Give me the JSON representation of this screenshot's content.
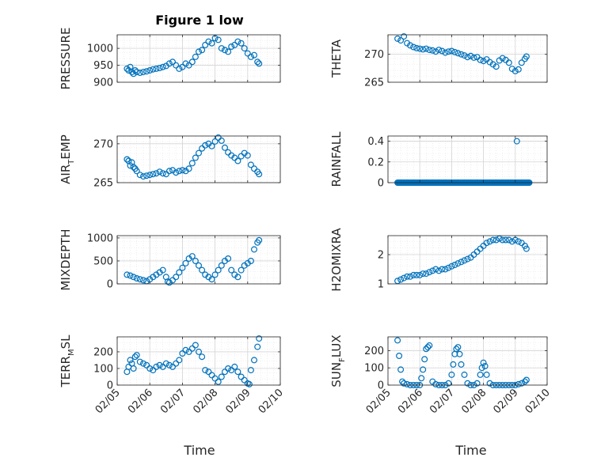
{
  "figure_title": "Figure 1 low",
  "xlabel": "Time",
  "x_ticks": [
    "02/05",
    "02/06",
    "02/07",
    "02/08",
    "02/09",
    "02/10"
  ],
  "marker_color": "#0072BD",
  "chart_data": [
    {
      "type": "scatter",
      "ylabel": "PRESSURE",
      "grid": true,
      "x": [
        5.3,
        5.35,
        5.4,
        5.45,
        5.5,
        5.55,
        5.6,
        5.7,
        5.8,
        5.9,
        6.0,
        6.1,
        6.2,
        6.3,
        6.4,
        6.5,
        6.6,
        6.7,
        6.8,
        6.9,
        7.0,
        7.1,
        7.2,
        7.3,
        7.4,
        7.5,
        7.6,
        7.7,
        7.8,
        7.9,
        8.0,
        8.1,
        8.2,
        8.3,
        8.4,
        8.5,
        8.6,
        8.7,
        8.8,
        8.9,
        9.0,
        9.1,
        9.2,
        9.3,
        9.35
      ],
      "y": [
        940,
        935,
        945,
        930,
        925,
        935,
        930,
        928,
        930,
        932,
        935,
        938,
        940,
        942,
        945,
        948,
        955,
        960,
        950,
        940,
        945,
        955,
        950,
        960,
        975,
        990,
        995,
        1010,
        1020,
        1015,
        1030,
        1025,
        1000,
        995,
        990,
        1005,
        1010,
        1020,
        1015,
        1000,
        985,
        975,
        980,
        960,
        955
      ],
      "ylim": [
        900,
        1040
      ],
      "yticks": [
        "900",
        "950",
        "1000"
      ],
      "ytick_values": [
        900,
        950,
        1000
      ]
    },
    {
      "type": "scatter",
      "ylabel": "THETA",
      "grid": true,
      "x": [
        5.3,
        5.4,
        5.5,
        5.6,
        5.7,
        5.8,
        5.9,
        6.0,
        6.1,
        6.2,
        6.3,
        6.4,
        6.5,
        6.6,
        6.7,
        6.8,
        6.9,
        7.0,
        7.1,
        7.2,
        7.3,
        7.4,
        7.5,
        7.6,
        7.7,
        7.8,
        7.9,
        8.0,
        8.1,
        8.2,
        8.3,
        8.4,
        8.5,
        8.6,
        8.7,
        8.8,
        8.9,
        9.0,
        9.1,
        9.2,
        9.3,
        9.35
      ],
      "y": [
        272.8,
        272.5,
        273.2,
        272.0,
        271.6,
        271.3,
        271.1,
        271.0,
        270.9,
        271.0,
        270.8,
        270.7,
        270.5,
        270.8,
        270.6,
        270.3,
        270.5,
        270.6,
        270.4,
        270.2,
        270.0,
        269.8,
        269.5,
        269.7,
        269.4,
        269.5,
        269.0,
        268.8,
        269.1,
        268.6,
        268.2,
        267.8,
        268.9,
        269.3,
        269.0,
        268.5,
        267.4,
        267.0,
        267.3,
        268.5,
        269.2,
        269.6
      ],
      "ylim": [
        265,
        273.5
      ],
      "yticks": [
        "265",
        "270"
      ],
      "ytick_values": [
        265,
        270
      ]
    },
    {
      "type": "scatter",
      "ylabel": "AIR_TEMP",
      "grid": true,
      "x": [
        5.3,
        5.35,
        5.4,
        5.45,
        5.5,
        5.55,
        5.6,
        5.7,
        5.8,
        5.9,
        6.0,
        6.1,
        6.2,
        6.3,
        6.4,
        6.5,
        6.6,
        6.7,
        6.8,
        6.9,
        7.0,
        7.1,
        7.2,
        7.3,
        7.4,
        7.5,
        7.6,
        7.7,
        7.8,
        7.9,
        8.0,
        8.1,
        8.2,
        8.3,
        8.4,
        8.5,
        8.6,
        8.7,
        8.8,
        8.9,
        9.0,
        9.1,
        9.2,
        9.3,
        9.35
      ],
      "y": [
        268.0,
        267.8,
        267.2,
        267.6,
        267.0,
        266.8,
        266.5,
        266.0,
        265.8,
        265.9,
        266.0,
        266.1,
        266.2,
        266.4,
        266.2,
        266.1,
        266.5,
        266.6,
        266.3,
        266.5,
        266.6,
        266.5,
        266.8,
        267.5,
        268.2,
        268.8,
        269.4,
        269.8,
        270.0,
        269.7,
        270.3,
        270.8,
        270.4,
        269.5,
        268.9,
        268.5,
        268.2,
        267.8,
        268.4,
        268.8,
        268.5,
        267.3,
        266.8,
        266.4,
        266.1
      ],
      "ylim": [
        265,
        271
      ],
      "yticks": [
        "265",
        "270"
      ],
      "ytick_values": [
        265,
        270
      ]
    },
    {
      "type": "scatter",
      "ylabel": "RAINFALL",
      "grid": true,
      "x_range": [
        5.3,
        9.45
      ],
      "constant": 0,
      "outlier": {
        "x": 9.05,
        "y": 0.4
      },
      "ylim": [
        0,
        0.45
      ],
      "yticks": [
        "0",
        "0.2",
        "0.4"
      ],
      "ytick_values": [
        0,
        0.2,
        0.4
      ]
    },
    {
      "type": "scatter",
      "ylabel": "MIXDEPTH",
      "grid": true,
      "x": [
        5.3,
        5.4,
        5.5,
        5.6,
        5.7,
        5.8,
        5.9,
        6.0,
        6.1,
        6.2,
        6.3,
        6.4,
        6.5,
        6.55,
        6.6,
        6.7,
        6.8,
        6.9,
        7.0,
        7.1,
        7.2,
        7.3,
        7.4,
        7.5,
        7.6,
        7.7,
        7.8,
        7.9,
        8.0,
        8.1,
        8.2,
        8.3,
        8.4,
        8.5,
        8.6,
        8.7,
        8.8,
        8.9,
        9.0,
        9.1,
        9.2,
        9.3,
        9.35
      ],
      "y": [
        200,
        180,
        150,
        120,
        100,
        80,
        60,
        100,
        150,
        200,
        250,
        300,
        150,
        50,
        30,
        80,
        150,
        250,
        350,
        450,
        550,
        600,
        500,
        400,
        300,
        200,
        150,
        100,
        200,
        300,
        400,
        500,
        550,
        300,
        200,
        150,
        300,
        400,
        450,
        500,
        750,
        900,
        950
      ],
      "ylim": [
        0,
        1050
      ],
      "yticks": [
        "0",
        "500",
        "1000"
      ],
      "ytick_values": [
        0,
        500,
        1000
      ]
    },
    {
      "type": "scatter",
      "ylabel": "H2OMIXRA",
      "grid": true,
      "x": [
        5.3,
        5.4,
        5.5,
        5.6,
        5.7,
        5.8,
        5.9,
        6.0,
        6.1,
        6.2,
        6.3,
        6.4,
        6.5,
        6.6,
        6.7,
        6.8,
        6.9,
        7.0,
        7.1,
        7.2,
        7.3,
        7.4,
        7.5,
        7.6,
        7.7,
        7.8,
        7.9,
        8.0,
        8.1,
        8.2,
        8.3,
        8.4,
        8.5,
        8.6,
        8.7,
        8.8,
        8.9,
        9.0,
        9.1,
        9.2,
        9.3,
        9.35
      ],
      "y": [
        1.1,
        1.15,
        1.2,
        1.25,
        1.25,
        1.3,
        1.3,
        1.3,
        1.35,
        1.35,
        1.4,
        1.45,
        1.5,
        1.45,
        1.5,
        1.5,
        1.55,
        1.6,
        1.65,
        1.7,
        1.75,
        1.8,
        1.85,
        1.9,
        2.0,
        2.1,
        2.2,
        2.3,
        2.4,
        2.45,
        2.5,
        2.5,
        2.55,
        2.5,
        2.5,
        2.5,
        2.45,
        2.5,
        2.45,
        2.4,
        2.3,
        2.2
      ],
      "ylim": [
        1,
        2.65
      ],
      "yticks": [
        "1",
        "2"
      ],
      "ytick_values": [
        1,
        2
      ]
    },
    {
      "type": "scatter",
      "ylabel": "TERR_MSL",
      "grid": true,
      "x": [
        5.3,
        5.35,
        5.4,
        5.45,
        5.5,
        5.55,
        5.6,
        5.7,
        5.8,
        5.9,
        6.0,
        6.1,
        6.2,
        6.3,
        6.4,
        6.5,
        6.6,
        6.7,
        6.8,
        6.9,
        7.0,
        7.1,
        7.2,
        7.3,
        7.4,
        7.5,
        7.6,
        7.7,
        7.8,
        7.9,
        8.0,
        8.1,
        8.2,
        8.3,
        8.4,
        8.5,
        8.6,
        8.7,
        8.8,
        8.9,
        9.0,
        9.05,
        9.1,
        9.2,
        9.3,
        9.35
      ],
      "y": [
        80,
        110,
        150,
        130,
        100,
        170,
        180,
        140,
        130,
        120,
        100,
        90,
        110,
        120,
        110,
        130,
        120,
        110,
        130,
        150,
        190,
        210,
        200,
        220,
        240,
        200,
        170,
        90,
        80,
        60,
        40,
        20,
        50,
        80,
        100,
        90,
        110,
        80,
        50,
        30,
        10,
        5,
        90,
        150,
        230,
        280
      ],
      "ylim": [
        0,
        290
      ],
      "yticks": [
        "0",
        "100",
        "200"
      ],
      "ytick_values": [
        0,
        100,
        200
      ]
    },
    {
      "type": "scatter",
      "ylabel": "SUN_FLUX",
      "grid": true,
      "x": [
        5.3,
        5.35,
        5.4,
        5.45,
        5.5,
        5.6,
        5.7,
        5.8,
        5.9,
        6.0,
        6.05,
        6.1,
        6.15,
        6.2,
        6.25,
        6.3,
        6.4,
        6.5,
        6.6,
        6.7,
        6.8,
        6.9,
        7.0,
        7.05,
        7.1,
        7.15,
        7.2,
        7.25,
        7.3,
        7.4,
        7.5,
        7.6,
        7.7,
        7.8,
        7.9,
        7.95,
        8.0,
        8.05,
        8.1,
        8.2,
        8.3,
        8.4,
        8.5,
        8.6,
        8.7,
        8.8,
        8.9,
        9.0,
        9.1,
        9.2,
        9.3,
        9.35
      ],
      "y": [
        260,
        170,
        90,
        20,
        10,
        5,
        0,
        0,
        0,
        0,
        40,
        90,
        150,
        210,
        220,
        230,
        20,
        5,
        0,
        0,
        0,
        10,
        60,
        120,
        180,
        210,
        220,
        180,
        120,
        60,
        10,
        0,
        0,
        10,
        60,
        100,
        130,
        110,
        60,
        10,
        0,
        0,
        0,
        0,
        0,
        0,
        0,
        0,
        5,
        10,
        20,
        30
      ],
      "ylim": [
        0,
        280
      ],
      "yticks": [
        "0",
        "100",
        "200"
      ],
      "ytick_values": [
        0,
        100,
        200
      ]
    }
  ]
}
